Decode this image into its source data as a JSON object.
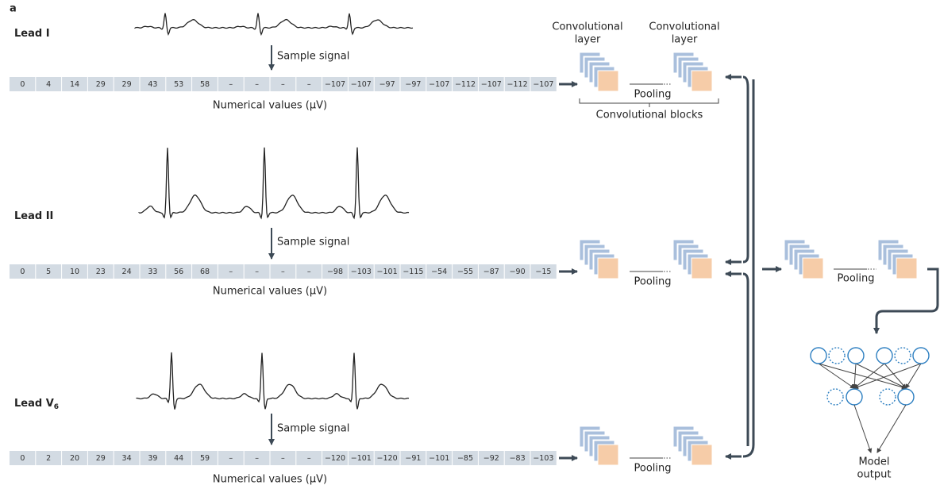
{
  "panel_label": "a",
  "leads": [
    {
      "label": "Lead I",
      "sample_label": "Sample signal",
      "values": [
        "0",
        "4",
        "14",
        "29",
        "29",
        "43",
        "53",
        "58",
        "–",
        "–",
        "–",
        "–",
        "−107",
        "−107",
        "−97",
        "−97",
        "−107",
        "−112",
        "−107",
        "−112",
        "−107"
      ],
      "axis_label": "Numerical values (μV)",
      "pooling": "Pooling"
    },
    {
      "label": "Lead II",
      "sample_label": "Sample signal",
      "values": [
        "0",
        "5",
        "10",
        "23",
        "24",
        "33",
        "56",
        "68",
        "–",
        "–",
        "–",
        "–",
        "−98",
        "−103",
        "−101",
        "−115",
        "−54",
        "−55",
        "−87",
        "−90",
        "−15"
      ],
      "axis_label": "Numerical values (μV)",
      "pooling": "Pooling"
    },
    {
      "label": "Lead V",
      "label_subscript": "6",
      "sample_label": "Sample signal",
      "values": [
        "0",
        "2",
        "20",
        "29",
        "34",
        "39",
        "44",
        "59",
        "–",
        "–",
        "–",
        "–",
        "−120",
        "−101",
        "−120",
        "−91",
        "−101",
        "−85",
        "−92",
        "−83",
        "−103"
      ],
      "axis_label": "Numerical values (μV)",
      "pooling": "Pooling"
    }
  ],
  "network": {
    "conv_labels": [
      [
        "Convolutional",
        "layer"
      ],
      [
        "Convolutional",
        "layer"
      ]
    ],
    "blocks_label": "Convolutional blocks",
    "merge_pooling": "Pooling",
    "output_label": [
      "Model",
      "output"
    ]
  }
}
